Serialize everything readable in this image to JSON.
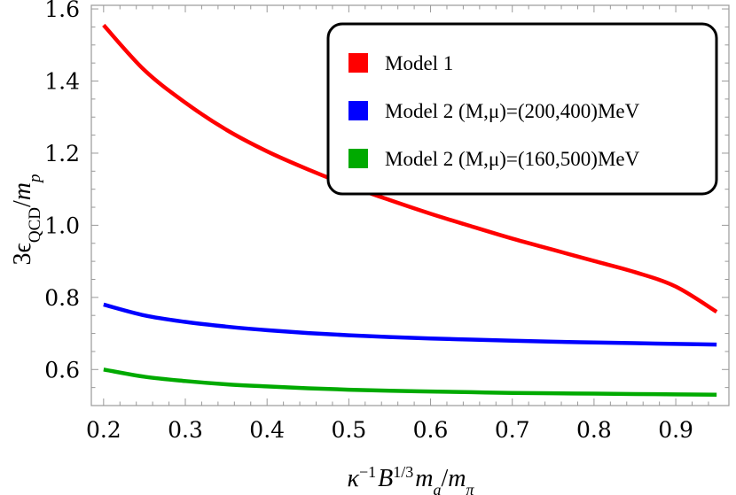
{
  "chart_data": {
    "type": "line",
    "xlim": [
      0.185,
      0.965
    ],
    "ylim": [
      0.5,
      1.61
    ],
    "x_ticks": [
      0.2,
      0.3,
      0.4,
      0.5,
      0.6,
      0.7,
      0.8,
      0.9
    ],
    "x_tick_labels": [
      "0.2",
      "0.3",
      "0.4",
      "0.5",
      "0.6",
      "0.7",
      "0.8",
      "0.9"
    ],
    "y_ticks": [
      0.6,
      0.8,
      1.0,
      1.2,
      1.4,
      1.6
    ],
    "y_tick_labels": [
      "0.6",
      "0.8",
      "1.0",
      "1.2",
      "1.4",
      "1.6"
    ],
    "xlabel": {
      "base": "κ",
      "sup1": "−1",
      "b": "B",
      "sup2": "1/3",
      "m1": "m",
      "sub1": "a",
      "slash": "/",
      "m2": "m",
      "sub2": "π"
    },
    "ylabel": {
      "pre": "3ϵ",
      "sub": "QCD",
      "slash": "/",
      "m": "m",
      "msub": "p"
    },
    "legend_position": "top-right",
    "series": [
      {
        "name": "Model 1",
        "color": "#ff0000",
        "x": [
          0.2,
          0.25,
          0.3,
          0.35,
          0.4,
          0.45,
          0.5,
          0.55,
          0.6,
          0.65,
          0.7,
          0.75,
          0.8,
          0.85,
          0.9,
          0.95
        ],
        "y": [
          1.555,
          1.43,
          1.34,
          1.265,
          1.205,
          1.155,
          1.11,
          1.07,
          1.032,
          0.997,
          0.963,
          0.932,
          0.901,
          0.87,
          0.83,
          0.76
        ]
      },
      {
        "name": "Model 2 (M,μ)=(200,400)MeV",
        "color": "#0000ff",
        "x": [
          0.2,
          0.25,
          0.3,
          0.35,
          0.4,
          0.45,
          0.5,
          0.55,
          0.6,
          0.65,
          0.7,
          0.75,
          0.8,
          0.85,
          0.9,
          0.95
        ],
        "y": [
          0.78,
          0.75,
          0.732,
          0.719,
          0.709,
          0.701,
          0.695,
          0.69,
          0.686,
          0.683,
          0.68,
          0.677,
          0.675,
          0.673,
          0.671,
          0.669
        ]
      },
      {
        "name": "Model 2 (M,μ)=(160,500)MeV",
        "color": "#00aa00",
        "x": [
          0.2,
          0.25,
          0.3,
          0.35,
          0.4,
          0.45,
          0.5,
          0.55,
          0.6,
          0.65,
          0.7,
          0.75,
          0.8,
          0.85,
          0.9,
          0.95
        ],
        "y": [
          0.6,
          0.58,
          0.568,
          0.559,
          0.553,
          0.548,
          0.544,
          0.541,
          0.539,
          0.537,
          0.535,
          0.534,
          0.533,
          0.532,
          0.531,
          0.53
        ]
      }
    ]
  }
}
